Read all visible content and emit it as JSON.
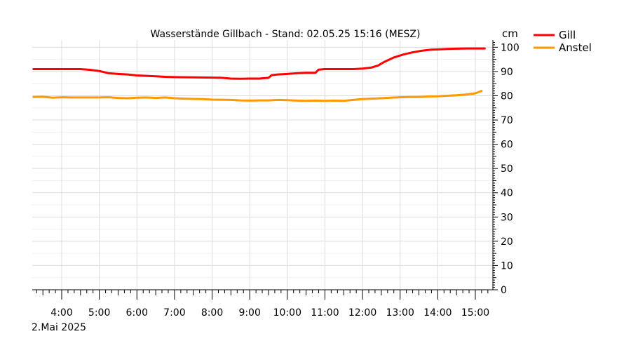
{
  "chart_data": {
    "type": "line",
    "title": "Wasserstände Gillbach - Stand: 02.05.25 15:16 (MESZ)",
    "ylabel": "cm",
    "date_label": "2.Mai 2025",
    "xlim": [
      "03:13",
      "15:28"
    ],
    "ylim": [
      0,
      103
    ],
    "x_ticks": [
      "4:00",
      "5:00",
      "6:00",
      "7:00",
      "8:00",
      "9:00",
      "10:00",
      "11:00",
      "12:00",
      "13:00",
      "14:00",
      "15:00"
    ],
    "y_ticks": [
      "0",
      "10",
      "20",
      "30",
      "40",
      "50",
      "60",
      "70",
      "80",
      "90",
      "100"
    ],
    "grid": true,
    "legend": "top-right",
    "series": [
      {
        "name": "Gill",
        "color": "#ff0000",
        "points": [
          [
            "03:15",
            91.0
          ],
          [
            "04:00",
            91.0
          ],
          [
            "04:30",
            91.0
          ],
          [
            "04:45",
            90.7
          ],
          [
            "05:00",
            90.2
          ],
          [
            "05:15",
            89.3
          ],
          [
            "05:30",
            89.0
          ],
          [
            "05:45",
            88.8
          ],
          [
            "06:00",
            88.4
          ],
          [
            "06:30",
            88.0
          ],
          [
            "06:45",
            87.8
          ],
          [
            "07:00",
            87.7
          ],
          [
            "07:30",
            87.6
          ],
          [
            "08:00",
            87.5
          ],
          [
            "08:15",
            87.4
          ],
          [
            "08:30",
            87.1
          ],
          [
            "08:45",
            87.0
          ],
          [
            "09:00",
            87.1
          ],
          [
            "09:15",
            87.1
          ],
          [
            "09:30",
            87.4
          ],
          [
            "09:35",
            88.5
          ],
          [
            "09:45",
            88.8
          ],
          [
            "10:00",
            89.0
          ],
          [
            "10:15",
            89.3
          ],
          [
            "10:30",
            89.5
          ],
          [
            "10:45",
            89.5
          ],
          [
            "10:50",
            90.8
          ],
          [
            "11:00",
            91.0
          ],
          [
            "11:30",
            91.0
          ],
          [
            "11:45",
            91.0
          ],
          [
            "12:00",
            91.2
          ],
          [
            "12:15",
            91.7
          ],
          [
            "12:25",
            92.5
          ],
          [
            "12:35",
            94.0
          ],
          [
            "12:50",
            95.8
          ],
          [
            "13:05",
            97.0
          ],
          [
            "13:20",
            97.9
          ],
          [
            "13:35",
            98.6
          ],
          [
            "13:50",
            99.0
          ],
          [
            "14:00",
            99.1
          ],
          [
            "14:15",
            99.3
          ],
          [
            "14:30",
            99.4
          ],
          [
            "14:45",
            99.5
          ],
          [
            "15:00",
            99.5
          ],
          [
            "15:15",
            99.5
          ]
        ]
      },
      {
        "name": "Anstel",
        "color": "#ff9900",
        "points": [
          [
            "03:15",
            79.5
          ],
          [
            "03:30",
            79.6
          ],
          [
            "03:45",
            79.2
          ],
          [
            "04:00",
            79.4
          ],
          [
            "04:15",
            79.3
          ],
          [
            "04:30",
            79.3
          ],
          [
            "05:00",
            79.3
          ],
          [
            "05:15",
            79.4
          ],
          [
            "05:30",
            79.1
          ],
          [
            "05:45",
            79.0
          ],
          [
            "06:00",
            79.2
          ],
          [
            "06:15",
            79.3
          ],
          [
            "06:30",
            79.1
          ],
          [
            "06:45",
            79.3
          ],
          [
            "07:00",
            79.0
          ],
          [
            "07:15",
            78.8
          ],
          [
            "07:30",
            78.7
          ],
          [
            "07:45",
            78.6
          ],
          [
            "08:00",
            78.4
          ],
          [
            "08:30",
            78.3
          ],
          [
            "08:45",
            78.1
          ],
          [
            "09:00",
            78.0
          ],
          [
            "09:15",
            78.1
          ],
          [
            "09:30",
            78.1
          ],
          [
            "09:45",
            78.3
          ],
          [
            "10:00",
            78.2
          ],
          [
            "10:15",
            78.0
          ],
          [
            "10:30",
            77.9
          ],
          [
            "10:45",
            78.0
          ],
          [
            "11:00",
            77.9
          ],
          [
            "11:15",
            78.0
          ],
          [
            "11:30",
            77.9
          ],
          [
            "11:45",
            78.3
          ],
          [
            "12:00",
            78.6
          ],
          [
            "12:15",
            78.8
          ],
          [
            "12:30",
            79.0
          ],
          [
            "12:45",
            79.2
          ],
          [
            "13:00",
            79.4
          ],
          [
            "13:15",
            79.5
          ],
          [
            "13:30",
            79.5
          ],
          [
            "13:45",
            79.7
          ],
          [
            "14:00",
            79.8
          ],
          [
            "14:15",
            80.0
          ],
          [
            "14:30",
            80.2
          ],
          [
            "14:45",
            80.5
          ],
          [
            "15:00",
            81.0
          ],
          [
            "15:10",
            82.0
          ]
        ]
      }
    ]
  }
}
